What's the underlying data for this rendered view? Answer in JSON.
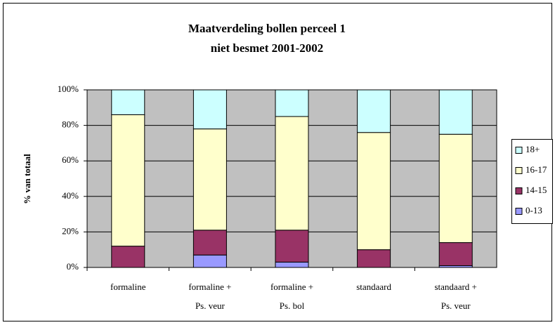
{
  "chart_data": {
    "type": "stacked_bar",
    "title": [
      "Maatverdeling bollen perceel 1",
      "niet besmet 2001-2002"
    ],
    "y_label": "% van totaal",
    "categories": [
      [
        "formaline"
      ],
      [
        "formaline +",
        "Ps. veur"
      ],
      [
        "formaline +",
        "Ps. bol"
      ],
      [
        "standaard"
      ],
      [
        "standaard +",
        "Ps. veur"
      ]
    ],
    "series": [
      {
        "name": "0-13",
        "color": "#9999ff",
        "values": [
          0,
          7,
          3,
          0,
          1
        ]
      },
      {
        "name": "14-15",
        "color": "#993366",
        "values": [
          12,
          14,
          18,
          10,
          13
        ]
      },
      {
        "name": "16-17",
        "color": "#ffffcc",
        "values": [
          74,
          57,
          64,
          66,
          61
        ]
      },
      {
        "name": "18+",
        "color": "#ccffff",
        "values": [
          14,
          22,
          15,
          24,
          25
        ]
      }
    ],
    "ylim": [
      0,
      100
    ],
    "yticks": [
      {
        "value": 0,
        "label": "0%"
      },
      {
        "value": 20,
        "label": "20%"
      },
      {
        "value": 40,
        "label": "40%"
      },
      {
        "value": 60,
        "label": "60%"
      },
      {
        "value": 80,
        "label": "80%"
      },
      {
        "value": 100,
        "label": "100%"
      }
    ],
    "grid": true,
    "legend": "right",
    "plot_background": "#c0c0c0"
  }
}
